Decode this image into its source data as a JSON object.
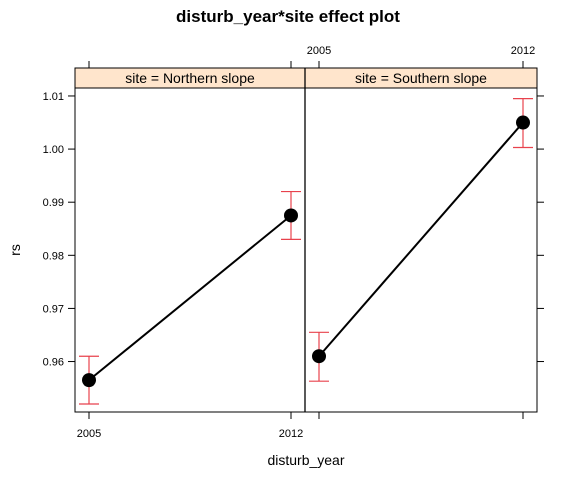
{
  "chart_data": {
    "type": "line",
    "title": "disturb_year*site effect plot",
    "xlabel": "disturb_year",
    "ylabel": "rs",
    "x_ticks": [
      "2005",
      "2012"
    ],
    "y_ticks": [
      "0.96",
      "0.97",
      "0.98",
      "0.99",
      "1.00",
      "1.01"
    ],
    "ylim": [
      0.9505,
      1.0115
    ],
    "point_color": "#000000",
    "line_color": "#000000",
    "errorbar_color": "#e8424d",
    "strip_color": "#ffe5cc",
    "panels": [
      {
        "strip": "site = Northern slope",
        "x": [
          2005,
          2012
        ],
        "y": [
          0.9565,
          0.9875
        ],
        "lower": [
          0.952,
          0.983
        ],
        "upper": [
          0.961,
          0.992
        ]
      },
      {
        "strip": "site = Southern slope",
        "x": [
          2005,
          2012
        ],
        "y": [
          0.961,
          1.005
        ],
        "lower": [
          0.9563,
          1.0003
        ],
        "upper": [
          0.9655,
          1.0095
        ]
      }
    ]
  }
}
